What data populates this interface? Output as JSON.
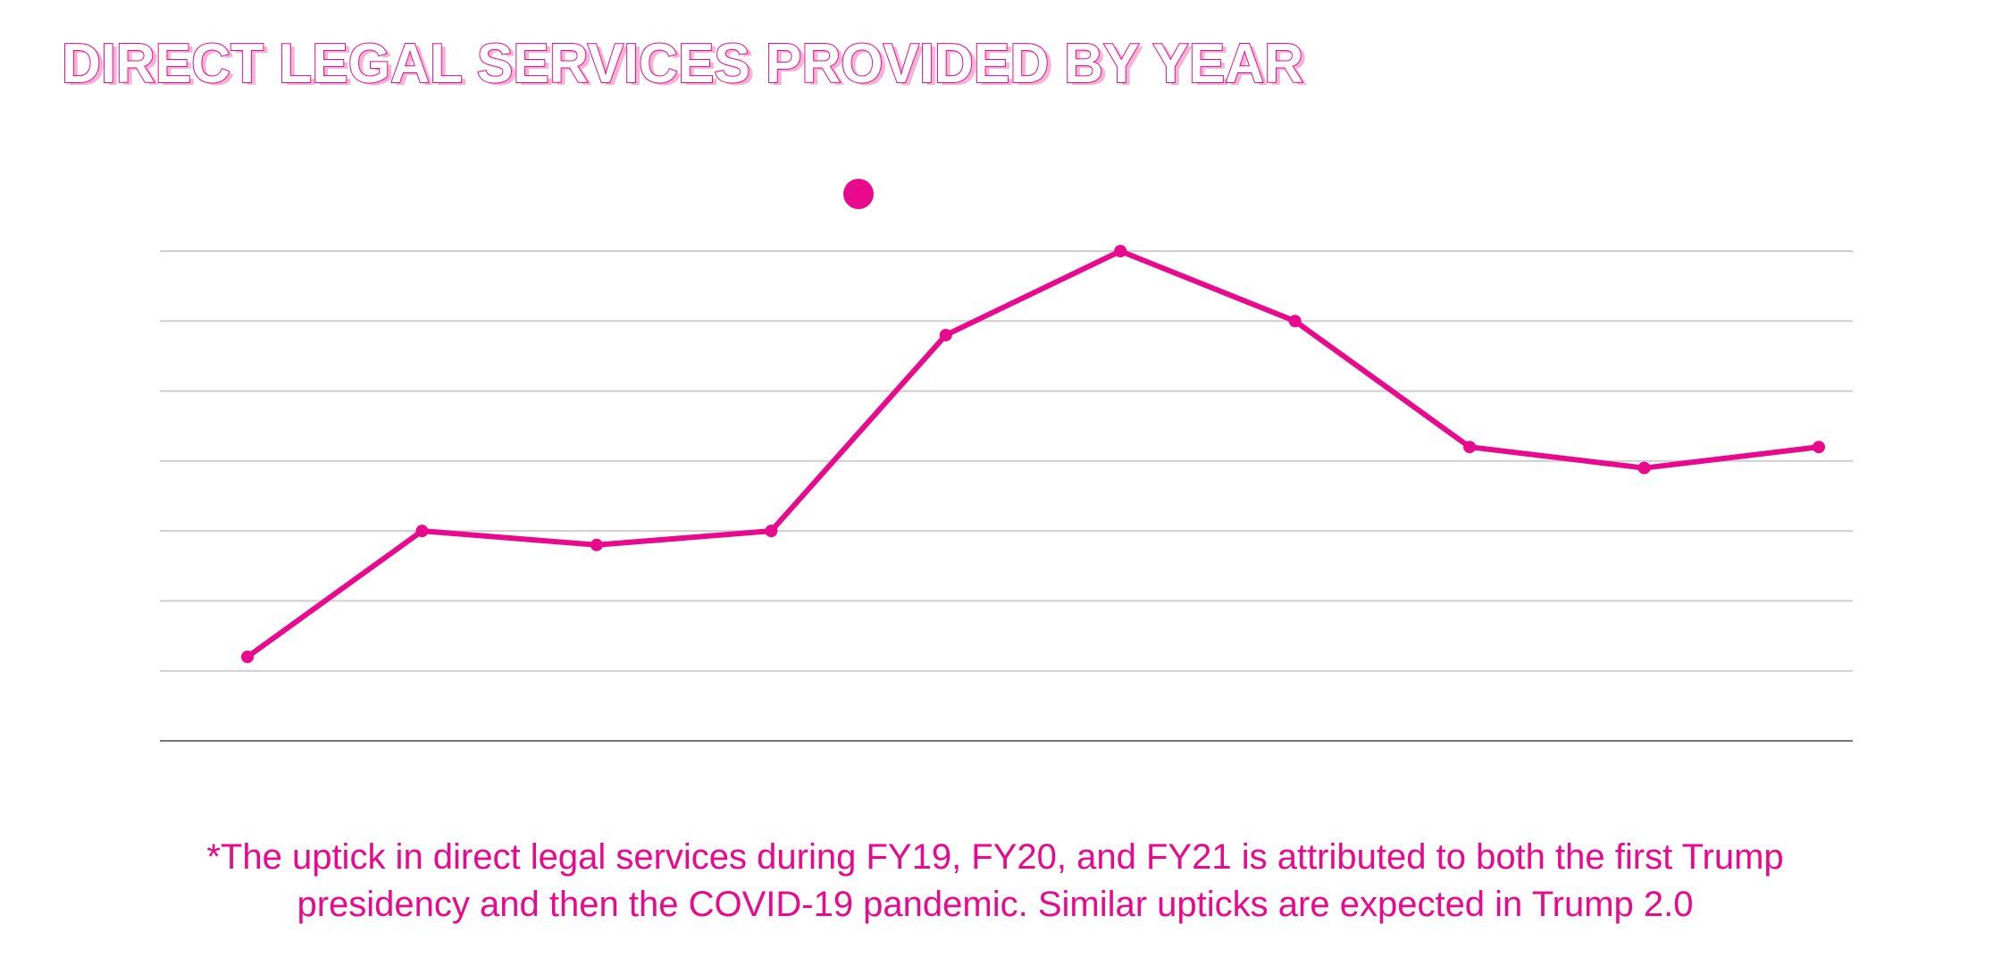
{
  "chart_data": {
    "type": "line",
    "title": "DIRECT LEGAL SERVICES PROVIDED BY YEAR",
    "categories": [
      null,
      null,
      null,
      null,
      null,
      null,
      null,
      null,
      null,
      null
    ],
    "series": [
      {
        "color": "#e8098c",
        "values": [
          1.2,
          3.0,
          2.8,
          3.0,
          5.8,
          7.0,
          6.0,
          4.2,
          3.9,
          4.2
        ]
      }
    ],
    "ylim": [
      0,
      7
    ],
    "yticks": [
      0,
      1,
      2,
      3,
      4,
      5,
      6,
      7
    ],
    "grid": true,
    "tick_labels": false,
    "legend": "top",
    "footnote": [
      "*The uptick in direct legal services during FY19, FY20, and FY21 is attributed to both the first Trump",
      "presidency and then the COVID-19 pandemic. Similar upticks are expected in Trump 2.0"
    ]
  }
}
